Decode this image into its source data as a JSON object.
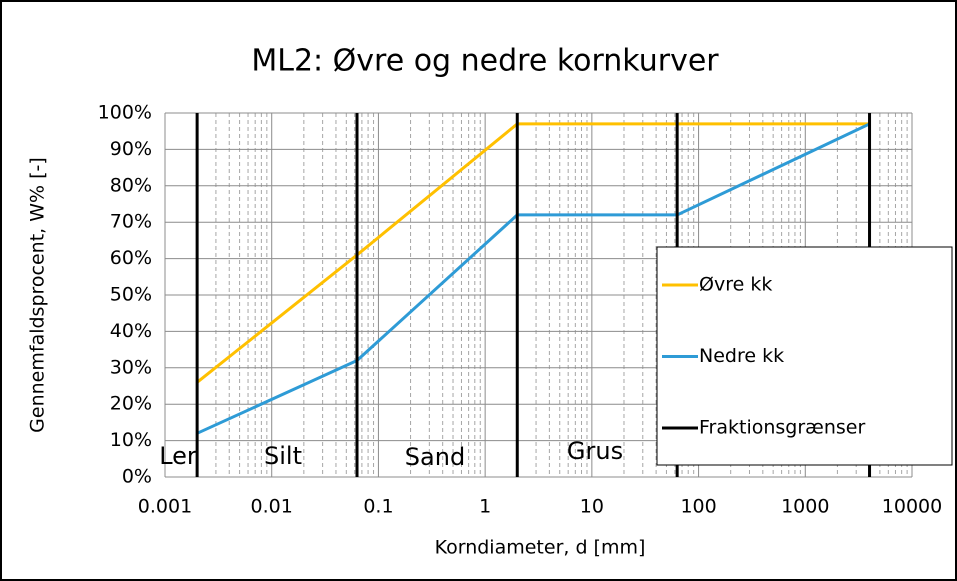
{
  "chart_data": {
    "type": "line",
    "title": "ML2: Øvre og nedre kornkurver",
    "xlabel": "Korndiameter, d [mm]",
    "ylabel": "Gennemfaldsprocent, W% [-]",
    "xscale": "log",
    "xlim": [
      0.001,
      10000
    ],
    "xticks": [
      0.001,
      0.01,
      0.1,
      1,
      10,
      100,
      1000,
      10000
    ],
    "ylim": [
      0,
      100
    ],
    "yticks": [
      {
        "value": 0,
        "label": "0%"
      },
      {
        "value": 10,
        "label": "10%"
      },
      {
        "value": 20,
        "label": "20%"
      },
      {
        "value": 30,
        "label": "30%"
      },
      {
        "value": 40,
        "label": "40%"
      },
      {
        "value": 50,
        "label": "50%"
      },
      {
        "value": 60,
        "label": "60%"
      },
      {
        "value": 70,
        "label": "70%"
      },
      {
        "value": 80,
        "label": "80%"
      },
      {
        "value": 90,
        "label": "90%"
      },
      {
        "value": 100,
        "label": "100%"
      }
    ],
    "grid": true,
    "minor_grid": true,
    "legend": "right",
    "series": [
      {
        "name": "Øvre kk",
        "color": "#FFC000",
        "x": [
          0.002,
          0.063,
          2,
          63,
          4000
        ],
        "values": [
          26,
          61,
          97,
          97,
          97
        ]
      },
      {
        "name": "Nedre kk",
        "color": "#2E9BD6",
        "x": [
          0.002,
          0.063,
          2,
          63,
          4000
        ],
        "values": [
          12,
          32,
          72,
          72,
          97
        ]
      },
      {
        "name": "Fraktionsgrænser",
        "color": "#000000",
        "x": [
          0.002,
          0.063,
          2,
          63,
          4000
        ]
      }
    ],
    "annotations": [
      "Ler",
      "Silt",
      "Sand",
      "Grus"
    ]
  }
}
